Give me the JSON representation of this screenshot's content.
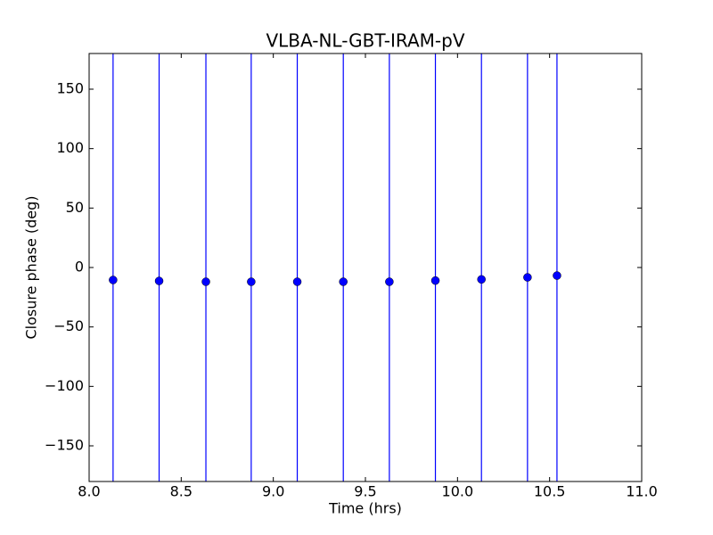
{
  "chart_data": {
    "type": "errorbar",
    "title": "VLBA-NL-GBT-IRAM-pV",
    "x_label": "Time (hrs)",
    "y_label": "Closure phase (deg)",
    "x": [
      8.13,
      8.38,
      8.634,
      8.88,
      9.13,
      9.38,
      9.63,
      9.88,
      10.13,
      10.38,
      10.54
    ],
    "values": [
      -10.5,
      -11.3,
      -12,
      -12,
      -12,
      -12,
      -12,
      -11,
      -10,
      -8.3,
      -6.8
    ],
    "errors": [
      200,
      200,
      200,
      200,
      200,
      200,
      200,
      200,
      200,
      200,
      200
    ],
    "color": "#0000ff",
    "xlim": [
      8,
      11
    ],
    "ylim": [
      -180,
      180
    ],
    "xticks": [
      {
        "value": 8,
        "label": "8.0"
      },
      8.5,
      {
        "value": 9,
        "label": "9.0"
      },
      9.5,
      {
        "value": 10,
        "label": "10.0"
      },
      10.5,
      {
        "value": 11,
        "label": "11.0"
      }
    ],
    "yticks": [
      {
        "value": -150,
        "label": "−150"
      },
      {
        "value": -100,
        "label": "−100"
      },
      {
        "value": -50,
        "label": "−50"
      },
      0,
      50,
      100,
      150
    ]
  }
}
